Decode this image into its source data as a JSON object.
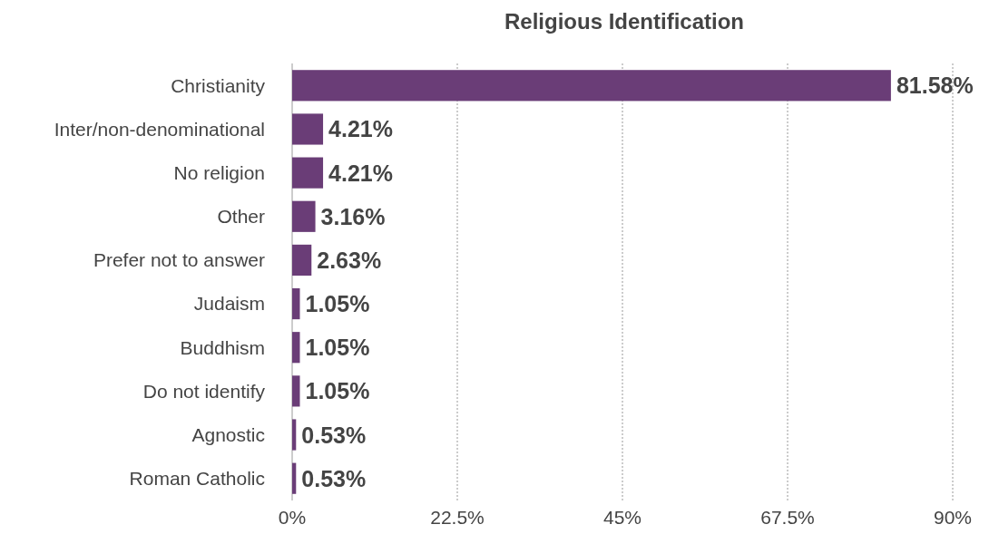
{
  "chart_data": {
    "type": "bar",
    "orientation": "horizontal",
    "title": "Religious Identification",
    "categories": [
      "Christianity",
      "Inter/non-denominational",
      "No religion",
      "Other",
      "Prefer not to answer",
      "Judaism",
      "Buddhism",
      "Do not identify",
      "Agnostic",
      "Roman Catholic"
    ],
    "values": [
      81.58,
      4.21,
      4.21,
      3.16,
      2.63,
      1.05,
      1.05,
      1.05,
      0.53,
      0.53
    ],
    "value_labels": [
      "81.58%",
      "4.21%",
      "4.21%",
      "3.16%",
      "2.63%",
      "1.05%",
      "1.05%",
      "1.05%",
      "0.53%",
      "0.53%"
    ],
    "color": "#6a3d77",
    "xlim": [
      0,
      90
    ],
    "xticks": [
      {
        "value": 0,
        "label": "0%"
      },
      {
        "value": 22.5,
        "label": "22.5%"
      },
      {
        "value": 45,
        "label": "45%"
      },
      {
        "value": 67.5,
        "label": "67.5%"
      },
      {
        "value": 90,
        "label": "90%"
      }
    ],
    "grid": "x"
  }
}
